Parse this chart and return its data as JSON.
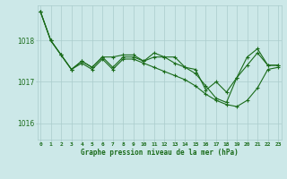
{
  "background_color": "#cce8e8",
  "grid_color": "#aacccc",
  "line_color": "#1a6b1a",
  "title": "Graphe pression niveau de la mer (hPa)",
  "yticks": [
    1016,
    1017,
    1018
  ],
  "ylim": [
    1015.6,
    1018.85
  ],
  "xlim": [
    -0.3,
    23.3
  ],
  "series": [
    [
      1018.7,
      1018.0,
      1017.65,
      1017.3,
      1017.5,
      1017.35,
      1017.6,
      1017.35,
      1017.6,
      1017.6,
      1017.5,
      1017.7,
      1017.6,
      1017.6,
      1017.35,
      1017.3,
      1016.8,
      1017.0,
      1016.75,
      1017.1,
      1017.4,
      1017.7,
      1017.4,
      1017.4
    ],
    [
      1018.7,
      1018.0,
      1017.65,
      1017.3,
      1017.45,
      1017.3,
      1017.55,
      1017.3,
      1017.55,
      1017.55,
      1017.45,
      1017.35,
      1017.25,
      1017.15,
      1017.05,
      1016.9,
      1016.7,
      1016.55,
      1016.45,
      1016.4,
      1016.55,
      1016.85,
      1017.3,
      1017.35
    ],
    [
      1018.7,
      1018.0,
      1017.65,
      1017.3,
      1017.5,
      1017.35,
      1017.6,
      1017.6,
      1017.65,
      1017.65,
      1017.5,
      1017.6,
      1017.6,
      1017.45,
      1017.35,
      1017.2,
      1016.9,
      1016.6,
      1016.5,
      1017.1,
      1017.6,
      1017.8,
      1017.4,
      1017.4
    ]
  ]
}
